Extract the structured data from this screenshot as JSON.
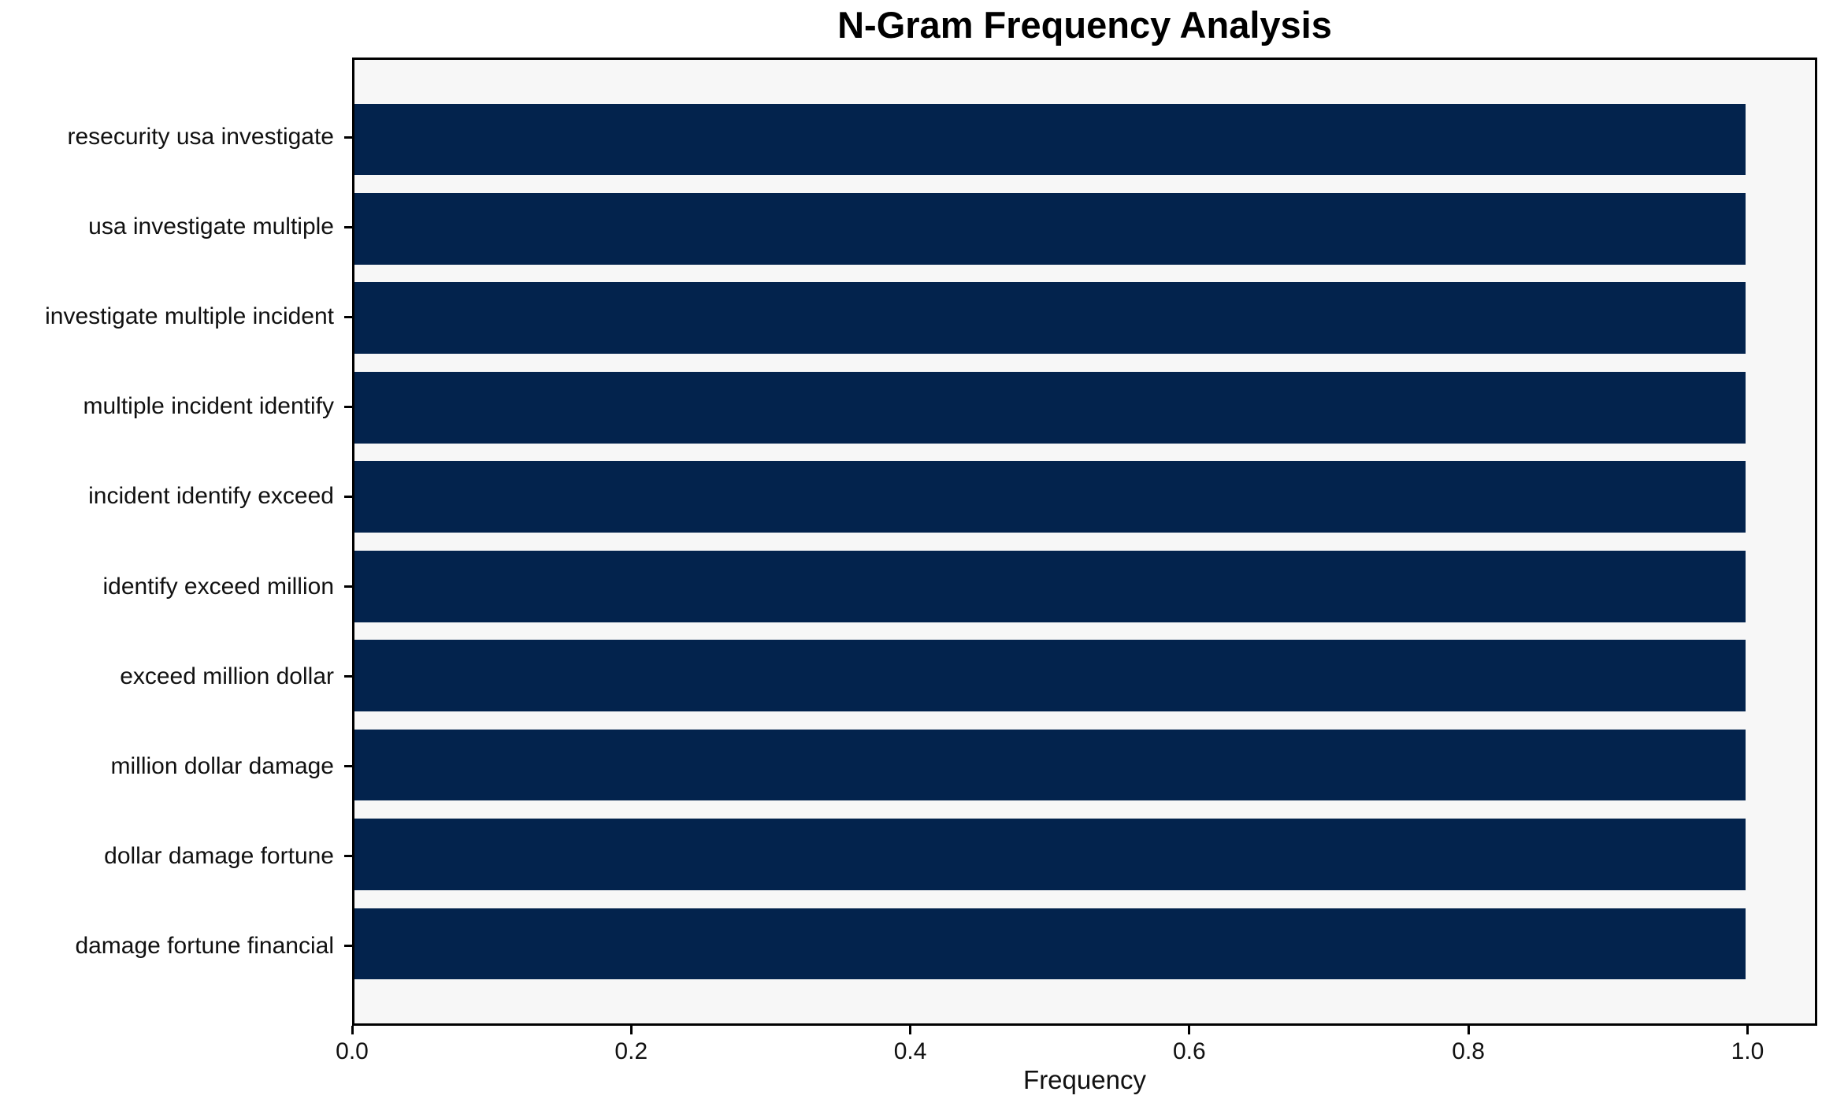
{
  "figure": {
    "title": "N-Gram Frequency Analysis",
    "x_axis_label": "Frequency"
  },
  "chart_data": {
    "type": "bar",
    "orientation": "horizontal",
    "title": "N-Gram Frequency Analysis",
    "xlabel": "Frequency",
    "ylabel": "",
    "categories": [
      "resecurity usa investigate",
      "usa investigate multiple",
      "investigate multiple incident",
      "multiple incident identify",
      "incident identify exceed",
      "identify exceed million",
      "exceed million dollar",
      "million dollar damage",
      "dollar damage fortune",
      "damage fortune financial"
    ],
    "values": [
      1.0,
      1.0,
      1.0,
      1.0,
      1.0,
      1.0,
      1.0,
      1.0,
      1.0,
      1.0
    ],
    "xlim": [
      0,
      1.05
    ],
    "xticks": [
      0.0,
      0.2,
      0.4,
      0.6,
      0.8,
      1.0
    ],
    "xtick_labels": [
      "0.0",
      "0.2",
      "0.4",
      "0.6",
      "0.8",
      "1.0"
    ],
    "grid": false,
    "legend": "none",
    "bar_height_fraction": 0.8,
    "colors": {
      "bar": "#03234d",
      "plot_background": "#f7f7f7",
      "figure_background": "#ffffff",
      "spine": "#000000",
      "text": "#111111"
    }
  }
}
